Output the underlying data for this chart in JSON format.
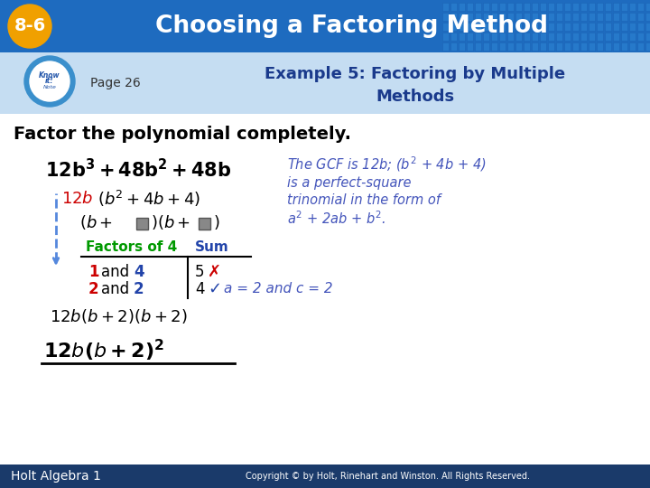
{
  "title_badge": "8-6",
  "title_text": "Choosing a Factoring Method",
  "title_bg_left": "#1a5fa8",
  "title_bg_right": "#2a7fd0",
  "title_badge_bg": "#f0a500",
  "subheader_bg": "#d0e8f8",
  "page_label": "Page 26",
  "footer_left": "Holt Algebra 1",
  "footer_text": "Copyright © by Holt, Rinehart and Winston. All Rights Reserved.",
  "footer_bg": "#1a3a6a",
  "bg_color": "#ffffff",
  "blue_note_color": "#4455bb",
  "green_color": "#009900",
  "red_color": "#cc0000",
  "dark_blue": "#2244aa"
}
